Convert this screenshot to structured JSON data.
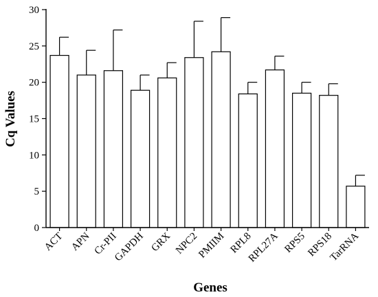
{
  "chart_data": {
    "type": "bar",
    "title": "",
    "xlabel": "Genes",
    "ylabel": "Cq Values",
    "ylim": [
      0,
      30
    ],
    "yticks": [
      0,
      5,
      10,
      15,
      20,
      25,
      30
    ],
    "grid": false,
    "legend": "none",
    "error_bars": true,
    "categories": [
      "ACT",
      "APN",
      "Cr-PII",
      "GAPDH",
      "GRX",
      "NPC2",
      "PMIIM",
      "RPL8",
      "RPL27A",
      "RPS5",
      "RPS18",
      "TarRNA"
    ],
    "values": [
      23.7,
      21.0,
      21.6,
      18.9,
      20.6,
      23.4,
      24.2,
      18.4,
      21.7,
      18.5,
      18.2,
      5.7
    ],
    "errors": [
      2.5,
      3.4,
      5.6,
      2.1,
      2.1,
      5.0,
      4.7,
      1.6,
      1.9,
      1.5,
      1.6,
      1.5
    ],
    "colors": {
      "bar_fill": "#ffffff",
      "stroke": "#000000"
    }
  }
}
